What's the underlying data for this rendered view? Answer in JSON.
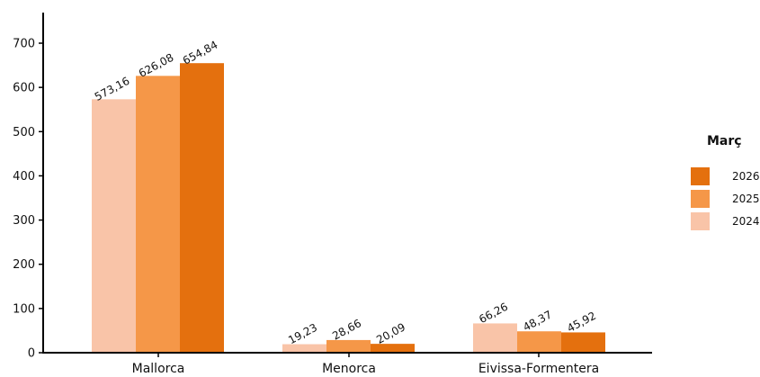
{
  "chart_data": {
    "type": "bar",
    "categories": [
      "Mallorca",
      "Menorca",
      "Eivissa-Formentera"
    ],
    "series": [
      {
        "name": "2024",
        "values": [
          573.16,
          19.23,
          66.26
        ],
        "labels": [
          "573,16",
          "19,23",
          "66,26"
        ],
        "color": "#F9C4A8"
      },
      {
        "name": "2025",
        "values": [
          626.08,
          28.66,
          48.37
        ],
        "labels": [
          "626,08",
          "28,66",
          "48,37"
        ],
        "color": "#F59748"
      },
      {
        "name": "2026",
        "values": [
          654.84,
          20.09,
          45.92
        ],
        "labels": [
          "654,84",
          "20,09",
          "45,92"
        ],
        "color": "#E4700E"
      }
    ],
    "ylim": [
      0,
      700
    ],
    "yticks": [
      0,
      100,
      200,
      300,
      400,
      500,
      600,
      700
    ],
    "xlabel": "",
    "ylabel": "",
    "title": "",
    "grid": false,
    "legend": {
      "title": "Març",
      "placement": "right",
      "order": [
        "2026",
        "2025",
        "2024"
      ]
    }
  }
}
